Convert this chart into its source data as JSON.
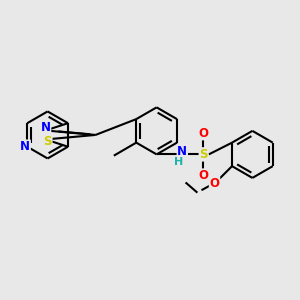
{
  "background_color": "#e8e8e8",
  "bond_color": "#000000",
  "atom_colors": {
    "N": "#0000ff",
    "S_thiazole": "#cccc00",
    "S_sulfonyl": "#cccc00",
    "O": "#ff0000",
    "H": "#20b2aa",
    "C": "#000000"
  },
  "figsize": [
    3.0,
    3.0
  ],
  "dpi": 100
}
